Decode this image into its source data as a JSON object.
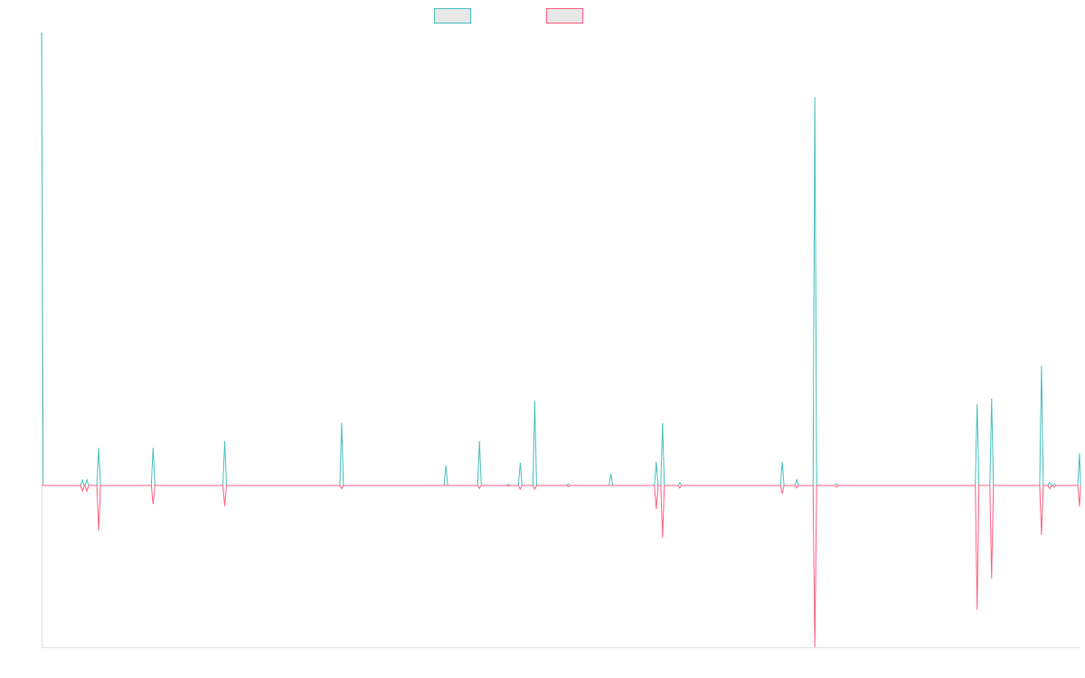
{
  "chart_data": {
    "type": "line",
    "legend": {
      "placement": "top-center",
      "entries": [
        {
          "color": "#4bc0c0",
          "fill": "#e8e8e8",
          "label": ""
        },
        {
          "color": "#ff6384",
          "fill": "#e8e8e8",
          "label": ""
        }
      ]
    },
    "y_range": [
      -2000,
      5600
    ],
    "grid": false,
    "series": [
      {
        "color": "#4bc0c0",
        "points": [
          [
            0,
            5600
          ],
          [
            1.8,
            0
          ],
          [
            43,
            0
          ],
          [
            45,
            70
          ],
          [
            47,
            0
          ],
          [
            48,
            0
          ],
          [
            50,
            70
          ],
          [
            52,
            0
          ],
          [
            61,
            0
          ],
          [
            63,
            465
          ],
          [
            65,
            0
          ],
          [
            121,
            0
          ],
          [
            123,
            465
          ],
          [
            125,
            0
          ],
          [
            200,
            0
          ],
          [
            202,
            550
          ],
          [
            204,
            0
          ],
          [
            329,
            0
          ],
          [
            331,
            775
          ],
          [
            333,
            0
          ],
          [
            444,
            0
          ],
          [
            446,
            250
          ],
          [
            448,
            0
          ],
          [
            481,
            0
          ],
          [
            483,
            550
          ],
          [
            485,
            0
          ],
          [
            513,
            0
          ],
          [
            515,
            15
          ],
          [
            517,
            0
          ],
          [
            526,
            0
          ],
          [
            528,
            280
          ],
          [
            530,
            0
          ],
          [
            542,
            0
          ],
          [
            544,
            1040
          ],
          [
            546,
            0
          ],
          [
            579,
            0
          ],
          [
            581,
            20
          ],
          [
            583,
            0
          ],
          [
            626,
            0
          ],
          [
            628,
            145
          ],
          [
            630,
            0
          ],
          [
            676,
            0
          ],
          [
            678,
            290
          ],
          [
            680,
            0
          ],
          [
            683,
            0
          ],
          [
            685,
            775
          ],
          [
            687,
            0
          ],
          [
            702,
            0
          ],
          [
            704,
            35
          ],
          [
            706,
            0
          ],
          [
            815,
            0
          ],
          [
            817,
            290
          ],
          [
            819,
            0
          ],
          [
            831,
            0
          ],
          [
            833,
            70
          ],
          [
            835,
            0
          ],
          [
            851,
            0
          ],
          [
            853,
            4800
          ],
          [
            855,
            0
          ],
          [
            875,
            0
          ],
          [
            877,
            20
          ],
          [
            879,
            0
          ],
          [
            1030,
            0
          ],
          [
            1032,
            1005
          ],
          [
            1034,
            0
          ],
          [
            1046,
            0
          ],
          [
            1048,
            1075
          ],
          [
            1050,
            0
          ],
          [
            1101,
            0
          ],
          [
            1103,
            1480
          ],
          [
            1105,
            0
          ],
          [
            1110,
            0
          ],
          [
            1112,
            40
          ],
          [
            1114,
            0
          ],
          [
            1115,
            0
          ],
          [
            1117,
            20
          ],
          [
            1119,
            0
          ],
          [
            1143,
            0
          ],
          [
            1145,
            400
          ],
          [
            1146,
            0
          ]
        ]
      },
      {
        "color": "#ff6384",
        "points": [
          [
            0,
            0
          ],
          [
            43,
            0
          ],
          [
            45,
            -70
          ],
          [
            47,
            0
          ],
          [
            48,
            0
          ],
          [
            50,
            -70
          ],
          [
            52,
            0
          ],
          [
            61,
            0
          ],
          [
            63,
            -560
          ],
          [
            65,
            0
          ],
          [
            121,
            0
          ],
          [
            123,
            -230
          ],
          [
            125,
            0
          ],
          [
            200,
            0
          ],
          [
            202,
            -255
          ],
          [
            204,
            0
          ],
          [
            329,
            0
          ],
          [
            331,
            -40
          ],
          [
            333,
            0
          ],
          [
            481,
            0
          ],
          [
            483,
            -35
          ],
          [
            485,
            0
          ],
          [
            513,
            0
          ],
          [
            515,
            -10
          ],
          [
            517,
            0
          ],
          [
            526,
            0
          ],
          [
            528,
            -45
          ],
          [
            530,
            0
          ],
          [
            542,
            0
          ],
          [
            544,
            -45
          ],
          [
            546,
            0
          ],
          [
            579,
            0
          ],
          [
            581,
            -15
          ],
          [
            583,
            0
          ],
          [
            676,
            0
          ],
          [
            678,
            -290
          ],
          [
            680,
            0
          ],
          [
            683,
            0
          ],
          [
            685,
            -645
          ],
          [
            687,
            0
          ],
          [
            702,
            0
          ],
          [
            704,
            -30
          ],
          [
            706,
            0
          ],
          [
            815,
            0
          ],
          [
            817,
            -100
          ],
          [
            819,
            0
          ],
          [
            831,
            0
          ],
          [
            833,
            -30
          ],
          [
            835,
            0
          ],
          [
            851,
            0
          ],
          [
            853,
            -2000
          ],
          [
            855,
            0
          ],
          [
            875,
            0
          ],
          [
            877,
            -20
          ],
          [
            879,
            0
          ],
          [
            1030,
            0
          ],
          [
            1032,
            -1535
          ],
          [
            1034,
            0
          ],
          [
            1046,
            0
          ],
          [
            1048,
            -1150
          ],
          [
            1050,
            0
          ],
          [
            1101,
            0
          ],
          [
            1103,
            -610
          ],
          [
            1105,
            0
          ],
          [
            1110,
            0
          ],
          [
            1112,
            -40
          ],
          [
            1114,
            0
          ],
          [
            1115,
            0
          ],
          [
            1117,
            -20
          ],
          [
            1119,
            0
          ],
          [
            1143,
            0
          ],
          [
            1145,
            -260
          ],
          [
            1146,
            0
          ]
        ]
      }
    ]
  }
}
